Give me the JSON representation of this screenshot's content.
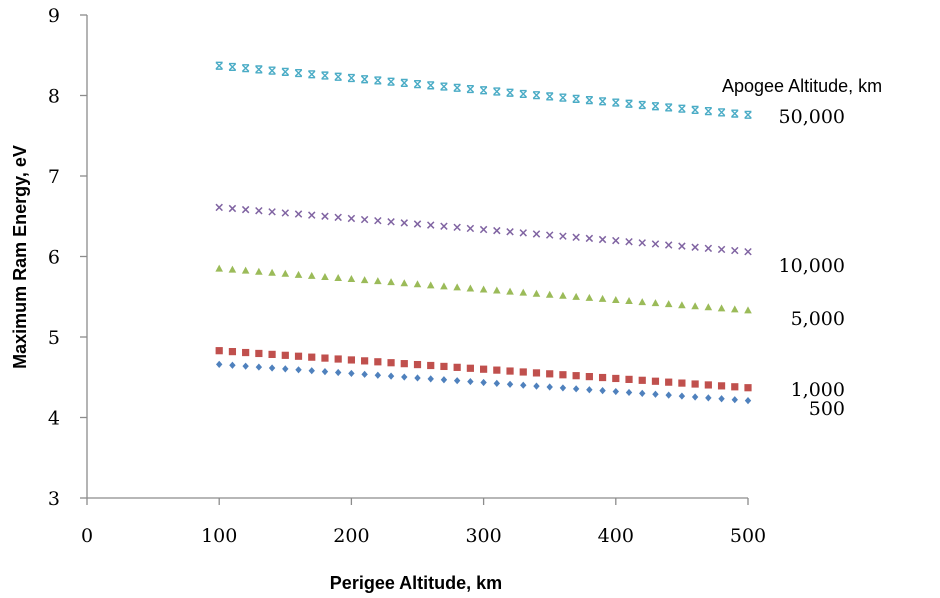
{
  "chart_data": {
    "type": "scatter",
    "xlabel": "Perigee Altitude, km",
    "ylabel": "Maximum Ram Energy, eV",
    "legend_title": "Apogee Altitude, km",
    "xlim": [
      0,
      500
    ],
    "ylim": [
      3,
      9
    ],
    "xticks": [
      "0",
      "100",
      "200",
      "300",
      "400",
      "500"
    ],
    "yticks": [
      "3",
      "4",
      "5",
      "6",
      "7",
      "8",
      "9"
    ],
    "grid": false,
    "x": [
      100,
      110,
      120,
      130,
      140,
      150,
      160,
      170,
      180,
      190,
      200,
      210,
      220,
      230,
      240,
      250,
      260,
      270,
      280,
      290,
      300,
      310,
      320,
      330,
      340,
      350,
      360,
      370,
      380,
      390,
      400,
      410,
      420,
      430,
      440,
      450,
      460,
      470,
      480,
      490,
      500
    ],
    "series": [
      {
        "name": "50,000",
        "marker": "star",
        "color": "#4bacc6",
        "start": 8.37,
        "end": 7.76
      },
      {
        "name": "10,000",
        "marker": "x",
        "color": "#8064a2",
        "start": 6.61,
        "end": 6.06
      },
      {
        "name": "5,000",
        "marker": "triangle",
        "color": "#9bbb59",
        "start": 5.85,
        "end": 5.33
      },
      {
        "name": "1,000",
        "marker": "square",
        "color": "#c0504d",
        "start": 4.83,
        "end": 4.37
      },
      {
        "name": "500",
        "marker": "diamond",
        "color": "#4f81bd",
        "start": 4.66,
        "end": 4.21
      }
    ]
  }
}
